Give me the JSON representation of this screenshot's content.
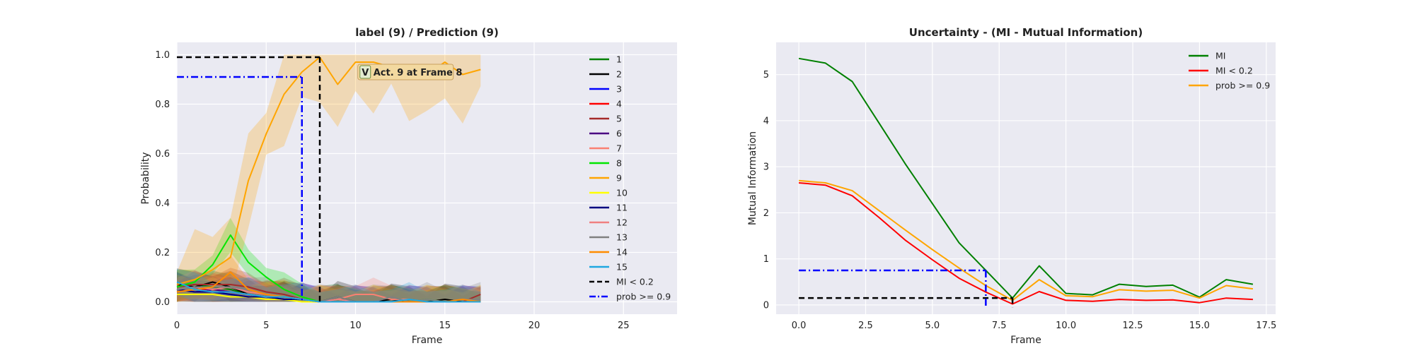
{
  "chart_data": [
    {
      "type": "line",
      "title": "label (9) / Prediction (9)",
      "xlabel": "Frame",
      "ylabel": "Probability",
      "xlim": [
        0,
        28
      ],
      "ylim": [
        -0.05,
        1.05
      ],
      "xticks": [
        0,
        5,
        10,
        15,
        20,
        25
      ],
      "yticks": [
        0.0,
        0.2,
        0.4,
        0.6,
        0.8,
        1.0
      ],
      "grid": true,
      "legend_position": "top-right",
      "x": [
        0,
        1,
        2,
        3,
        4,
        5,
        6,
        7,
        8,
        9,
        10,
        11,
        12,
        13,
        14,
        15,
        16,
        17
      ],
      "series": [
        {
          "name": "1",
          "color": "#008000",
          "values": [
            0.06,
            0.07,
            0.06,
            0.05,
            0.03,
            0.02,
            0.02,
            0.01,
            0.0,
            0.01,
            0.0,
            0.0,
            0.0,
            0.01,
            0.0,
            0.0,
            0.0,
            0.0
          ]
        },
        {
          "name": "2",
          "color": "#000000",
          "values": [
            0.07,
            0.06,
            0.08,
            0.06,
            0.03,
            0.02,
            0.02,
            0.01,
            0.0,
            0.02,
            0.0,
            0.0,
            0.01,
            0.0,
            0.0,
            0.01,
            0.0,
            0.0
          ]
        },
        {
          "name": "3",
          "color": "#0000ff",
          "values": [
            0.05,
            0.06,
            0.04,
            0.03,
            0.02,
            0.02,
            0.01,
            0.01,
            0.0,
            0.0,
            0.0,
            0.0,
            0.0,
            0.0,
            0.0,
            0.0,
            0.0,
            0.0
          ]
        },
        {
          "name": "4",
          "color": "#ff0000",
          "values": [
            0.04,
            0.05,
            0.05,
            0.04,
            0.03,
            0.02,
            0.02,
            0.01,
            0.0,
            0.0,
            0.0,
            0.0,
            0.0,
            0.0,
            0.0,
            0.0,
            0.0,
            0.0
          ]
        },
        {
          "name": "5",
          "color": "#a52a2a",
          "values": [
            0.06,
            0.07,
            0.07,
            0.07,
            0.06,
            0.04,
            0.03,
            0.01,
            0.0,
            0.0,
            0.0,
            0.0,
            0.0,
            0.0,
            0.0,
            0.0,
            0.0,
            0.03
          ]
        },
        {
          "name": "6",
          "color": "#4b0082",
          "values": [
            0.05,
            0.04,
            0.05,
            0.04,
            0.03,
            0.02,
            0.01,
            0.01,
            0.0,
            0.0,
            0.0,
            0.0,
            0.0,
            0.0,
            0.0,
            0.0,
            0.0,
            0.0
          ]
        },
        {
          "name": "7",
          "color": "#fa8072",
          "values": [
            0.04,
            0.05,
            0.04,
            0.04,
            0.03,
            0.02,
            0.02,
            0.01,
            0.0,
            0.01,
            0.03,
            0.03,
            0.01,
            0.01,
            0.0,
            0.0,
            0.0,
            0.0
          ]
        },
        {
          "name": "8",
          "color": "#00e600",
          "values": [
            0.06,
            0.08,
            0.15,
            0.27,
            0.16,
            0.1,
            0.05,
            0.02,
            0.0,
            0.0,
            0.0,
            0.0,
            0.0,
            0.0,
            0.01,
            0.0,
            0.0,
            0.0
          ]
        },
        {
          "name": "9",
          "color": "#ffa500",
          "values": [
            0.07,
            0.09,
            0.13,
            0.18,
            0.49,
            0.68,
            0.84,
            0.93,
            0.99,
            0.88,
            0.97,
            0.97,
            0.95,
            0.93,
            0.92,
            0.97,
            0.92,
            0.94
          ]
        },
        {
          "name": "10",
          "color": "#ffff00",
          "values": [
            0.03,
            0.03,
            0.03,
            0.02,
            0.02,
            0.01,
            0.01,
            0.0,
            0.0,
            0.0,
            0.0,
            0.0,
            0.0,
            0.0,
            0.0,
            0.0,
            0.0,
            0.0
          ]
        },
        {
          "name": "11",
          "color": "#000080",
          "values": [
            0.05,
            0.04,
            0.04,
            0.03,
            0.02,
            0.02,
            0.01,
            0.01,
            0.0,
            0.0,
            0.0,
            0.0,
            0.0,
            0.0,
            0.0,
            0.0,
            0.0,
            0.0
          ]
        },
        {
          "name": "12",
          "color": "#f08080",
          "values": [
            0.05,
            0.06,
            0.05,
            0.06,
            0.04,
            0.03,
            0.02,
            0.01,
            0.0,
            0.01,
            0.0,
            0.0,
            0.0,
            0.0,
            0.0,
            0.0,
            0.0,
            0.0
          ]
        },
        {
          "name": "13",
          "color": "#808080",
          "values": [
            0.05,
            0.06,
            0.06,
            0.06,
            0.05,
            0.03,
            0.02,
            0.01,
            0.0,
            0.02,
            0.0,
            0.0,
            0.02,
            0.0,
            0.01,
            0.0,
            0.01,
            0.01
          ]
        },
        {
          "name": "14",
          "color": "#ff8c00",
          "values": [
            0.04,
            0.05,
            0.06,
            0.12,
            0.05,
            0.03,
            0.02,
            0.01,
            0.0,
            0.0,
            0.0,
            0.0,
            0.0,
            0.0,
            0.0,
            0.0,
            0.01,
            0.0
          ]
        },
        {
          "name": "15",
          "color": "#1ea7e1",
          "values": [
            0.08,
            0.05,
            0.04,
            0.04,
            0.03,
            0.02,
            0.02,
            0.01,
            0.0,
            0.0,
            0.0,
            0.0,
            0.0,
            0.01,
            0.0,
            0.0,
            0.0,
            0.0
          ]
        }
      ],
      "reference_lines": [
        {
          "name": "MI < 0.2",
          "color": "#000000",
          "style": "dashed",
          "x_end": 8,
          "y": 0.99
        },
        {
          "name": "prob >= 0.9",
          "color": "#0000ff",
          "style": "dashdot",
          "x_end": 7,
          "y": 0.91
        }
      ],
      "annotation": {
        "marker": "V",
        "text": "Act. 9 at Frame 8",
        "x": 11,
        "y": 0.93
      }
    },
    {
      "type": "line",
      "title": "Uncertainty - (MI - Mutual Information)",
      "xlabel": "Frame",
      "ylabel": "Mutual Information",
      "xlim": [
        -0.85,
        17.85
      ],
      "ylim": [
        -0.2,
        5.7
      ],
      "xticks": [
        0.0,
        2.5,
        5.0,
        7.5,
        10.0,
        12.5,
        15.0,
        17.5
      ],
      "yticks": [
        0,
        1,
        2,
        3,
        4,
        5
      ],
      "grid": true,
      "legend_position": "top-right",
      "x": [
        0,
        1,
        2,
        3,
        4,
        5,
        6,
        7,
        8,
        9,
        10,
        11,
        12,
        13,
        14,
        15,
        16,
        17
      ],
      "series": [
        {
          "name": "MI",
          "color": "#008000",
          "values": [
            5.35,
            5.25,
            4.85,
            3.95,
            3.05,
            2.2,
            1.35,
            0.75,
            0.15,
            0.85,
            0.25,
            0.22,
            0.45,
            0.4,
            0.43,
            0.17,
            0.55,
            0.45
          ]
        },
        {
          "name": "MI < 0.2",
          "color": "#ff0000",
          "values": [
            2.65,
            2.6,
            2.37,
            1.9,
            1.4,
            0.98,
            0.58,
            0.28,
            0.02,
            0.29,
            0.1,
            0.08,
            0.12,
            0.1,
            0.11,
            0.05,
            0.15,
            0.12
          ]
        },
        {
          "name": "prob >= 0.9",
          "color": "#ffa500",
          "values": [
            2.7,
            2.65,
            2.48,
            2.05,
            1.62,
            1.2,
            0.8,
            0.42,
            0.1,
            0.55,
            0.2,
            0.18,
            0.33,
            0.3,
            0.32,
            0.15,
            0.42,
            0.35
          ]
        }
      ],
      "reference_lines": [
        {
          "name": "MI < 0.2",
          "color": "#000000",
          "style": "dashed",
          "x_end": 8,
          "y": 0.15
        },
        {
          "name": "prob >= 0.9",
          "color": "#0000ff",
          "style": "dashdot",
          "x_end": 7,
          "y": 0.75
        }
      ]
    }
  ]
}
